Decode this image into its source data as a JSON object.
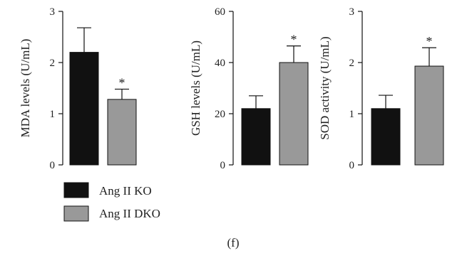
{
  "chart_data": [
    {
      "type": "bar",
      "ylabel": "MDA levels (U/mL)",
      "ylim": [
        0,
        3
      ],
      "yticks": [
        0,
        1,
        2,
        3
      ],
      "categories": [
        "Ang II KO",
        "Ang II DKO"
      ],
      "values": [
        2.2,
        1.28
      ],
      "errors": [
        0.48,
        0.2
      ],
      "significance": [
        "",
        "*"
      ]
    },
    {
      "type": "bar",
      "ylabel": "GSH levels (U/mL)",
      "ylim": [
        0,
        60
      ],
      "yticks": [
        0,
        20,
        40,
        60
      ],
      "categories": [
        "Ang II KO",
        "Ang II DKO"
      ],
      "values": [
        22,
        40
      ],
      "errors": [
        5,
        6.5
      ],
      "significance": [
        "",
        "*"
      ]
    },
    {
      "type": "bar",
      "ylabel": "SOD activity (U/mL)",
      "ylim": [
        0,
        3
      ],
      "yticks": [
        0,
        1,
        2,
        3
      ],
      "categories": [
        "Ang II KO",
        "Ang II DKO"
      ],
      "values": [
        1.1,
        1.93
      ],
      "errors": [
        0.26,
        0.36
      ],
      "significance": [
        "",
        "*"
      ]
    }
  ],
  "legend": {
    "placement": "bottom-left",
    "items": [
      {
        "label": "Ang II KO",
        "color": "#111111"
      },
      {
        "label": "Ang II DKO",
        "color": "#999999"
      }
    ]
  },
  "series_colors": [
    "#111111",
    "#999999"
  ],
  "caption": "(f)"
}
